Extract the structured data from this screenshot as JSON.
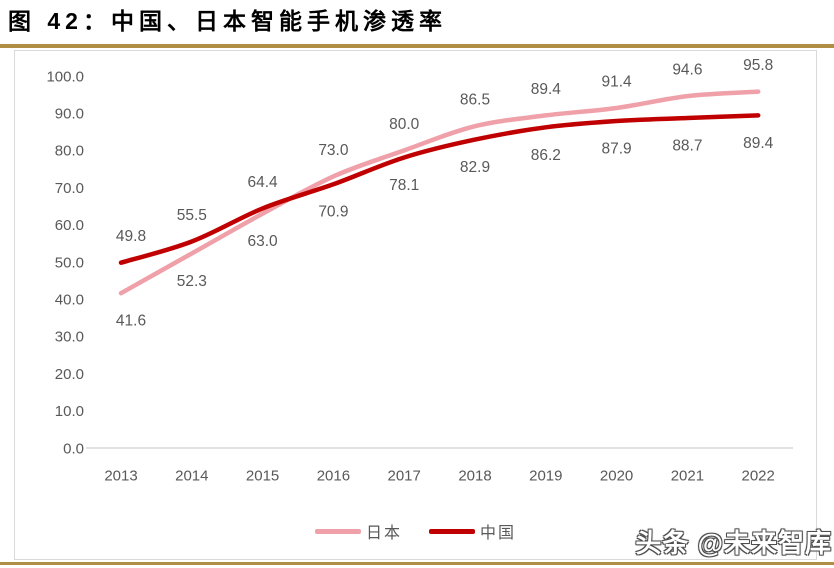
{
  "page": {
    "title": "图 42：中国、日本智能手机渗透率",
    "watermark": "头条 @未来智库",
    "accent_gold": "#B08E44",
    "frame_border_color": "#D9D9D9"
  },
  "chart_data": {
    "type": "line",
    "title": "中国、日本智能手机渗透率",
    "categories": [
      "2013",
      "2014",
      "2015",
      "2016",
      "2017",
      "2018",
      "2019",
      "2020",
      "2021",
      "2022"
    ],
    "series": [
      {
        "id": "japan",
        "name": "日本",
        "color": "#F0A0A8",
        "values": [
          41.6,
          52.3,
          63.0,
          73.0,
          80.0,
          86.5,
          89.4,
          91.4,
          94.6,
          95.8
        ]
      },
      {
        "id": "china",
        "name": "中国",
        "color": "#C00000",
        "values": [
          49.8,
          55.5,
          64.4,
          70.9,
          78.1,
          82.9,
          86.2,
          87.9,
          88.7,
          89.4
        ]
      }
    ],
    "ylim": [
      0,
      100
    ],
    "ytick_step": 10,
    "ytick_labels": [
      "0.0",
      "10.0",
      "20.0",
      "30.0",
      "40.0",
      "50.0",
      "60.0",
      "70.0",
      "80.0",
      "90.0",
      "100.0"
    ],
    "xlabel": "",
    "ylabel": "",
    "grid": false,
    "data_labels": true,
    "smoothed_lines": true,
    "legend_position": "bottom",
    "axis_color": "#D9D9D9",
    "label_color": "#595959"
  }
}
